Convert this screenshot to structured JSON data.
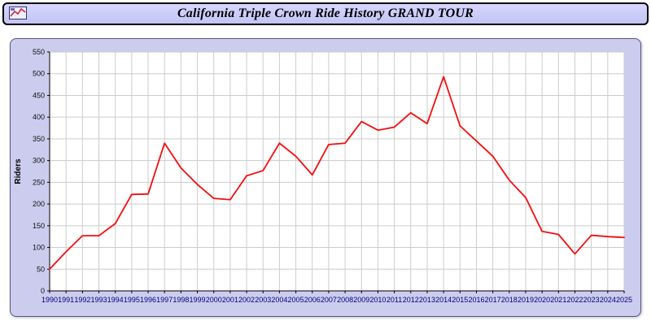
{
  "header": {
    "title": "California Triple Crown Ride History GRAND TOUR"
  },
  "chart_data": {
    "type": "line",
    "title": "California Triple Crown Ride History GRAND TOUR",
    "xlabel": "",
    "ylabel": "Riders",
    "ylim": [
      0,
      550
    ],
    "ytick_step": 50,
    "grid": true,
    "legend_position": "none",
    "x": [
      1990,
      1991,
      1992,
      1993,
      1994,
      1995,
      1996,
      1997,
      1998,
      1999,
      2000,
      2001,
      2002,
      2003,
      2004,
      2005,
      2006,
      2007,
      2008,
      2009,
      2010,
      2011,
      2012,
      2013,
      2014,
      2015,
      2016,
      2017,
      2018,
      2019,
      2020,
      2021,
      2022,
      2023,
      2024,
      2025
    ],
    "series": [
      {
        "name": "Riders",
        "values": [
          50,
          90,
          127,
          127,
          155,
          222,
          223,
          340,
          283,
          245,
          213,
          210,
          265,
          277,
          340,
          310,
          267,
          337,
          340,
          390,
          370,
          377,
          410,
          385,
          493,
          380,
          345,
          310,
          255,
          215,
          137,
          130,
          85,
          128,
          125,
          123
        ]
      }
    ],
    "colors": {
      "line": "#f40d0d",
      "grid": "#cccccc",
      "axis": "#000000",
      "xtick_text": "#000080",
      "ytick_text": "#111111",
      "plot_bg": "#ffffff",
      "panel_bg": "#ccccee",
      "header_bg": "#ccccff"
    }
  }
}
